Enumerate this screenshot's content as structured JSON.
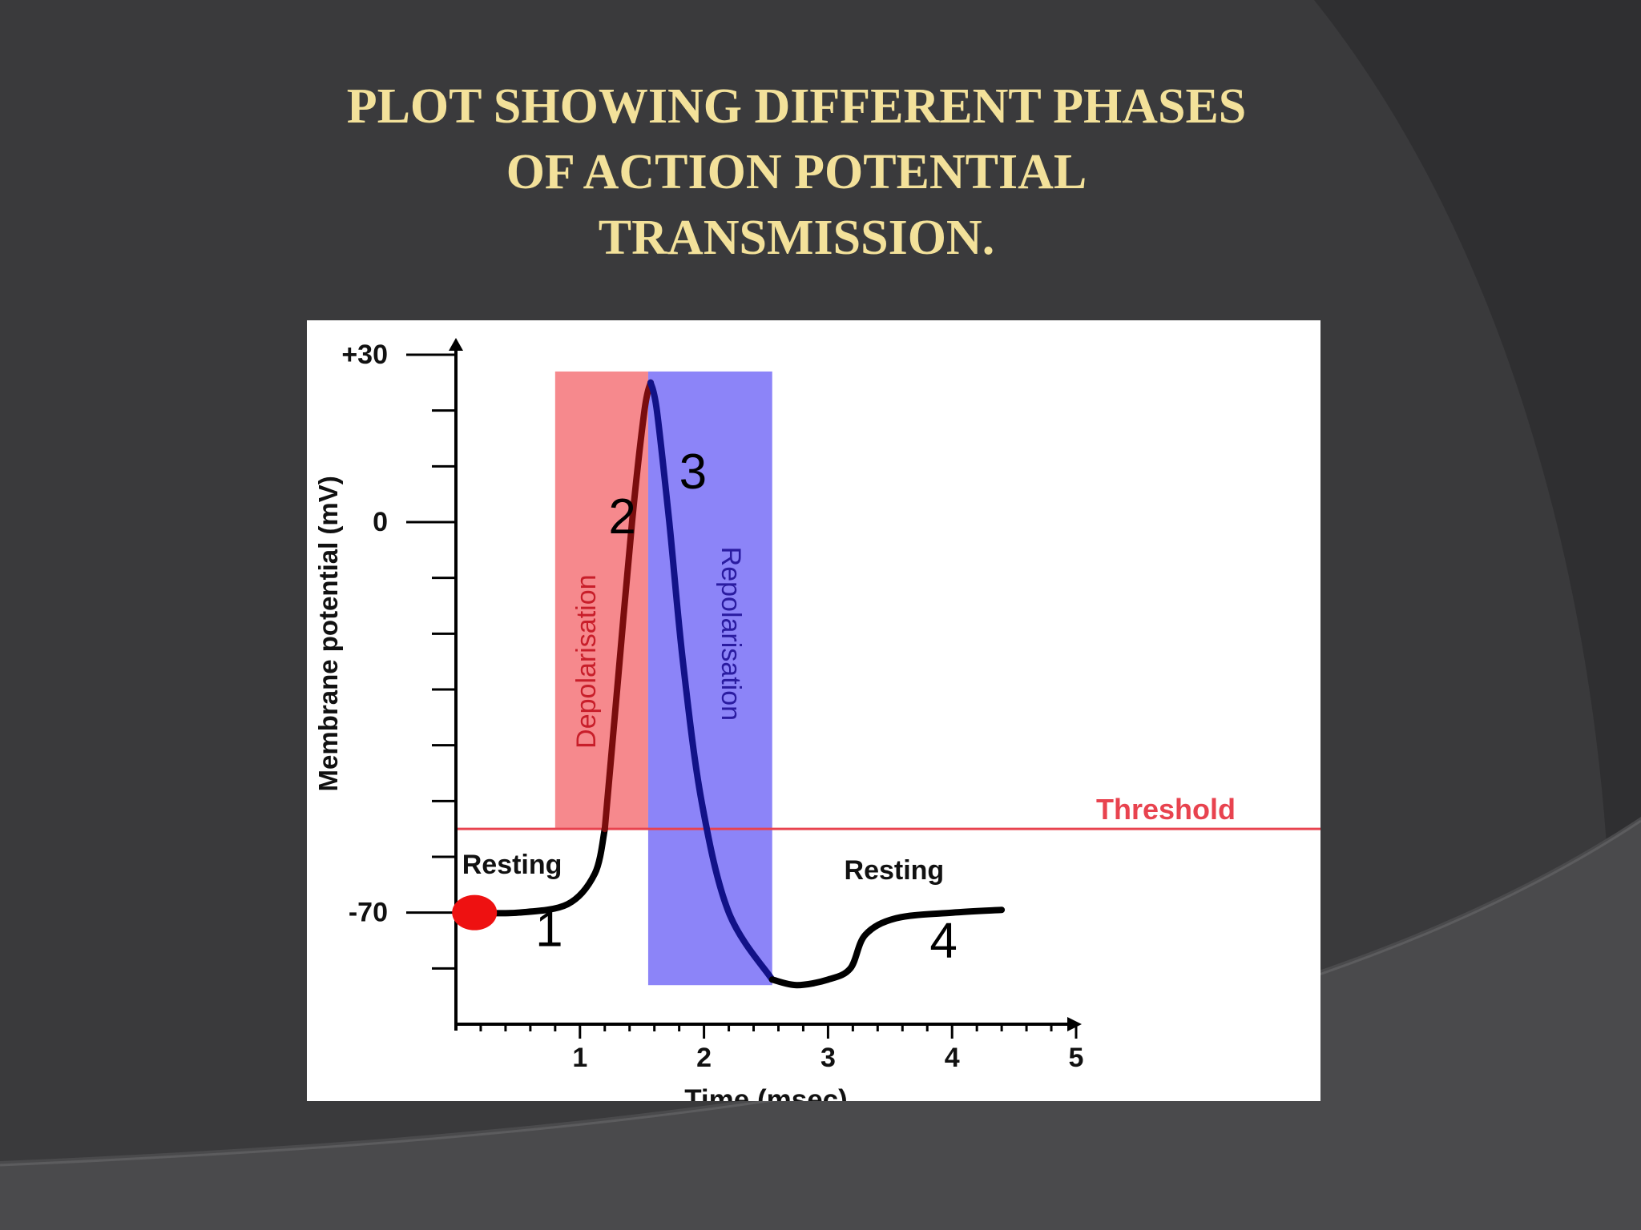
{
  "slide": {
    "title_lines": [
      "PLOT SHOWING DIFFERENT PHASES",
      "OF ACTION POTENTIAL",
      "TRANSMISSION."
    ],
    "title_color": "#f3e19a",
    "background_color": "#3a3a3c"
  },
  "chart_data": {
    "type": "line",
    "title": "",
    "xlabel": "Time (msec)",
    "ylabel": "Membrane potential (mV)",
    "xlim": [
      0,
      5.3
    ],
    "ylim": [
      -90,
      33
    ],
    "x_ticks": [
      1,
      2,
      3,
      4,
      5
    ],
    "x_tick_labels": [
      "1",
      "2",
      "3",
      "4",
      "5"
    ],
    "x_minor_step": 0.2,
    "y_ticks": [
      30,
      20,
      10,
      0,
      -10,
      -20,
      -30,
      -40,
      -50,
      -60,
      -70,
      -80
    ],
    "y_tick_labels": [
      {
        "value": 30,
        "label": "+30"
      },
      {
        "value": 0,
        "label": "0"
      },
      {
        "value": -70,
        "label": "-70"
      }
    ],
    "grid": false,
    "legend": "none",
    "threshold": {
      "value": -55,
      "label": "Threshold",
      "color": "#e8434f"
    },
    "regions": [
      {
        "name": "Depolarisation",
        "x0": 0.8,
        "x1": 1.55,
        "y0": -55,
        "y1": 27,
        "color": "#f6898d",
        "label_color": "#c81e2a"
      },
      {
        "name": "Repolarisation",
        "x0": 1.55,
        "x1": 2.55,
        "y0": -83,
        "y1": 27,
        "color": "#8c84f8",
        "label_color": "#2a1ba0"
      }
    ],
    "resting_marker": {
      "x": 0.15,
      "y": -70,
      "color": "#ee1111"
    },
    "series": [
      {
        "segments": [
          {
            "phase": "resting-start",
            "color": "#000000",
            "points": [
              [
                0.15,
                -70
              ],
              [
                0.5,
                -70
              ],
              [
                0.9,
                -68.5
              ],
              [
                1.12,
                -63
              ],
              [
                1.2,
                -55
              ]
            ]
          },
          {
            "phase": "depolarisation",
            "color": "#7a0d0d",
            "points": [
              [
                1.2,
                -55
              ],
              [
                1.3,
                -30
              ],
              [
                1.42,
                0
              ],
              [
                1.52,
                20
              ],
              [
                1.57,
                25
              ]
            ]
          },
          {
            "phase": "repolarisation",
            "color": "#121288",
            "points": [
              [
                1.57,
                25
              ],
              [
                1.62,
                20
              ],
              [
                1.72,
                0
              ],
              [
                1.83,
                -25
              ],
              [
                1.98,
                -50
              ],
              [
                2.2,
                -70
              ],
              [
                2.55,
                -82
              ]
            ]
          },
          {
            "phase": "hyperpolarisation-recovery",
            "color": "#000000",
            "points": [
              [
                2.55,
                -82
              ],
              [
                2.75,
                -83
              ],
              [
                3.0,
                -82
              ],
              [
                3.18,
                -80
              ],
              [
                3.3,
                -74
              ],
              [
                3.55,
                -71
              ],
              [
                4.0,
                -70
              ],
              [
                4.4,
                -69.5
              ]
            ]
          }
        ]
      }
    ],
    "annotations": [
      {
        "text": "Resting",
        "x": 0.05,
        "y": -63,
        "color": "#111111"
      },
      {
        "text": "Resting",
        "x": 3.13,
        "y": -64,
        "color": "#111111"
      },
      {
        "text": "1",
        "x": 0.64,
        "y": -76,
        "color": "#000000"
      },
      {
        "text": "2",
        "x": 1.23,
        "y": -2,
        "color": "#000000"
      },
      {
        "text": "3",
        "x": 1.8,
        "y": 6,
        "color": "#000000"
      },
      {
        "text": "4",
        "x": 3.82,
        "y": -78,
        "color": "#000000"
      }
    ]
  }
}
